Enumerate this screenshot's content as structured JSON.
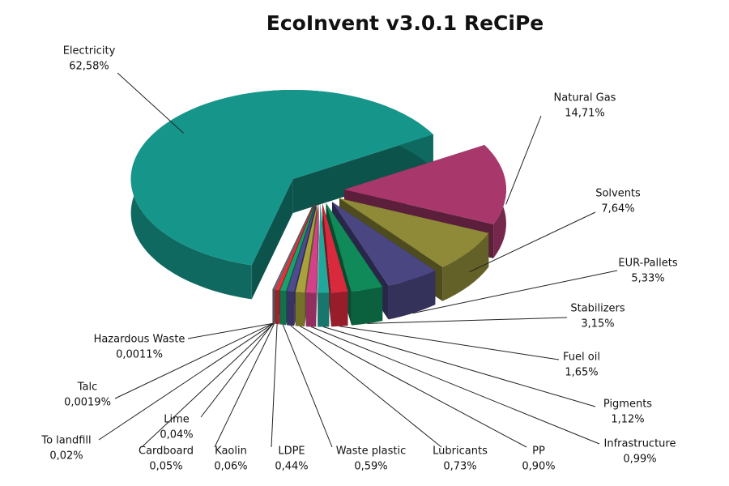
{
  "chart_data": {
    "type": "pie",
    "title": "EcoInvent v3.0.1 ReCiPe",
    "categories": [
      "Electricity",
      "Natural Gas",
      "Solvents",
      "EUR-Pallets",
      "Stabilizers",
      "Fuel oil",
      "Pigments",
      "Infrastructure",
      "PP",
      "Lubricants",
      "Waste plastic",
      "LDPE",
      "Kaolin",
      "Cardboard",
      "To landfill",
      "Lime",
      "Talc",
      "Hazardous Waste"
    ],
    "values": [
      62.58,
      14.71,
      7.64,
      5.33,
      3.15,
      1.65,
      1.12,
      0.99,
      0.9,
      0.73,
      0.59,
      0.44,
      0.06,
      0.05,
      0.02,
      0.04,
      0.0019,
      0.0011
    ],
    "value_labels": [
      "62,58%",
      "14,71%",
      "7,64%",
      "5,33%",
      "3,15%",
      "1,65%",
      "1,12%",
      "0,99%",
      "0,90%",
      "0,73%",
      "0,59%",
      "0,44%",
      "0,06%",
      "0,05%",
      "0,02%",
      "0,04%",
      "0,0019%",
      "0,0011%"
    ],
    "colors": [
      "#16968a",
      "#a8386c",
      "#8e8a38",
      "#4a4682",
      "#0f8a58",
      "#d82a3c",
      "#22a89a",
      "#d2418a",
      "#a8a23c",
      "#4e4a90",
      "#1aa06c",
      "#e0343e",
      "#2fb0a2",
      "#e04c90",
      "#8e8a38",
      "#4a4682",
      "#0f8a58",
      "#d82a3c"
    ]
  }
}
